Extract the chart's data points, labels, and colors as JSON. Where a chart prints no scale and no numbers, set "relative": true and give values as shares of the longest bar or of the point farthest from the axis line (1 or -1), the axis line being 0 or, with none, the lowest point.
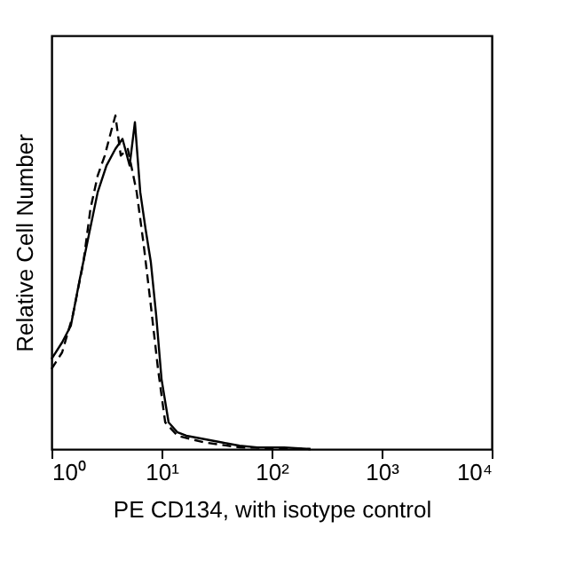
{
  "chart_data": {
    "type": "line",
    "relative": true,
    "xlabel": "PE CD134, with isotype control",
    "ylabel": "Relative Cell Number",
    "log": "x",
    "xlim": [
      1,
      10000
    ],
    "xticks": [
      {
        "value": 1,
        "label": "10⁰"
      },
      {
        "value": 10,
        "label": "10¹"
      },
      {
        "value": 100,
        "label": "10²"
      },
      {
        "value": 1000,
        "label": "10³"
      },
      {
        "value": 10000,
        "label": "10⁴"
      }
    ],
    "grid": false,
    "marker": "none",
    "series": [
      {
        "color": "#000000",
        "line_style": "solid",
        "x": [
          1,
          1.25,
          1.5,
          1.81,
          2.18,
          2.63,
          3.16,
          3.81,
          4.42,
          5.13,
          5.73,
          6.41,
          7.16,
          8.0,
          8.95,
          10,
          11.6,
          14.0,
          16.8,
          24.4,
          35.3,
          51.3,
          74.3,
          130,
          226
        ],
        "values": [
          0.27,
          0.32,
          0.37,
          0.51,
          0.64,
          0.77,
          0.85,
          0.9,
          0.93,
          0.85,
          0.98,
          0.77,
          0.66,
          0.56,
          0.4,
          0.21,
          0.08,
          0.05,
          0.04,
          0.03,
          0.02,
          0.01,
          0.005,
          0.005,
          0
        ]
      },
      {
        "color": "#000000",
        "line_style": "dashed",
        "x": [
          1,
          1.25,
          1.56,
          1.95,
          2.26,
          2.63,
          3.05,
          3.53,
          3.81,
          4.26,
          4.94,
          5.95,
          6.9,
          8.0,
          9.29,
          10.8,
          14.0,
          24.4,
          51.3,
          226
        ],
        "values": [
          0.24,
          0.29,
          0.4,
          0.56,
          0.72,
          0.82,
          0.88,
          0.96,
          1,
          0.88,
          0.9,
          0.77,
          0.61,
          0.43,
          0.24,
          0.08,
          0.04,
          0.02,
          0.005,
          0
        ]
      }
    ]
  }
}
